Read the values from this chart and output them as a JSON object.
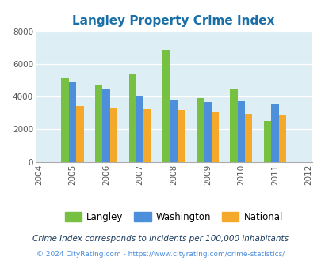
{
  "title": "Langley Property Crime Index",
  "data_years": [
    2005,
    2006,
    2007,
    2008,
    2009,
    2010,
    2011
  ],
  "all_years": [
    2004,
    2005,
    2006,
    2007,
    2008,
    2009,
    2010,
    2011,
    2012
  ],
  "langley": [
    5100,
    4750,
    5400,
    6850,
    3900,
    4500,
    2500
  ],
  "washington": [
    4900,
    4450,
    4050,
    3750,
    3650,
    3700,
    3550
  ],
  "national": [
    3400,
    3300,
    3250,
    3200,
    3050,
    2950,
    2900
  ],
  "langley_color": "#77c142",
  "washington_color": "#4d8fdb",
  "national_color": "#f5a92a",
  "bg_color": "#deeef5",
  "title_color": "#1a6fa8",
  "ylim": [
    0,
    8000
  ],
  "yticks": [
    0,
    2000,
    4000,
    6000,
    8000
  ],
  "footnote1": "Crime Index corresponds to incidents per 100,000 inhabitants",
  "footnote2": "© 2024 CityRating.com - https://www.cityrating.com/crime-statistics/",
  "bar_width": 0.22,
  "legend_labels": [
    "Langley",
    "Washington",
    "National"
  ]
}
